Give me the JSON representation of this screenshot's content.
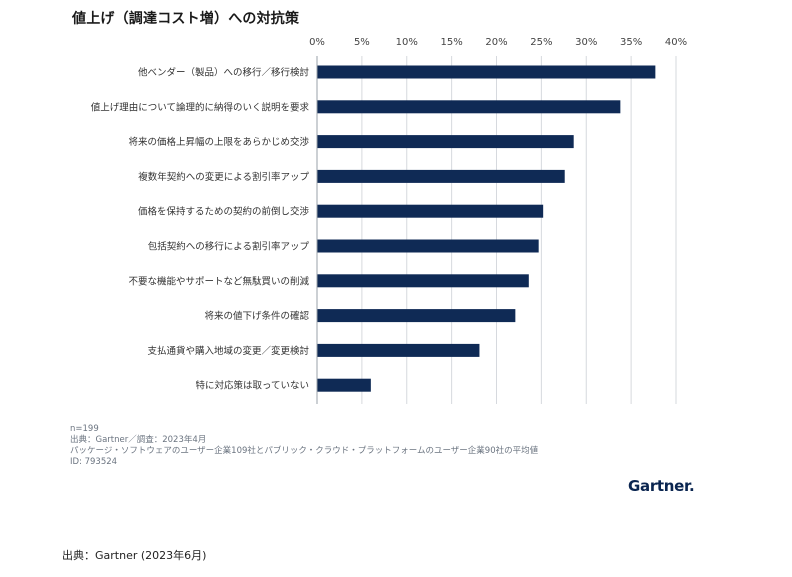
{
  "chart_data": {
    "type": "bar",
    "orientation": "horizontal",
    "title": "値上げ（調達コスト増）への対抗策",
    "xlim": [
      0,
      40
    ],
    "ticks": [
      0,
      5,
      10,
      15,
      20,
      25,
      30,
      35,
      40
    ],
    "tick_labels": [
      "0%",
      "5%",
      "10%",
      "15%",
      "20%",
      "25%",
      "30%",
      "35%",
      "40%"
    ],
    "grid": true,
    "bar_color": "#0f2a55",
    "categories": [
      "他ベンダー（製品）への移行／移行検討",
      "値上げ理由について論理的に納得のいく説明を要求",
      "将来の価格上昇幅の上限をあらかじめ交渉",
      "複数年契約への変更による割引率アップ",
      "価格を保持するための契約の前倒し交渉",
      "包括契約への移行による割引率アップ",
      "不要な機能やサポートなど無駄買いの削減",
      "将来の値下げ条件の確認",
      "支払通貨や購入地域の変更／変更検討",
      "特に対応策は取っていない"
    ],
    "values": [
      37.7,
      33.8,
      28.6,
      27.6,
      25.2,
      24.7,
      23.6,
      22.1,
      18.1,
      6.0
    ]
  },
  "notes": {
    "n": "n=199",
    "source": "出典：Gartner／調査：2023年4月",
    "description": "パッケージ・ソフトウェアのユーザー企業109社とパブリック・クラウド・プラットフォームのユーザー企業90社の平均値",
    "id": "ID: 793524"
  },
  "brand": {
    "name": "Gartner",
    "dot": "."
  },
  "footer": {
    "source": "出典：Gartner (2023年6月)"
  }
}
